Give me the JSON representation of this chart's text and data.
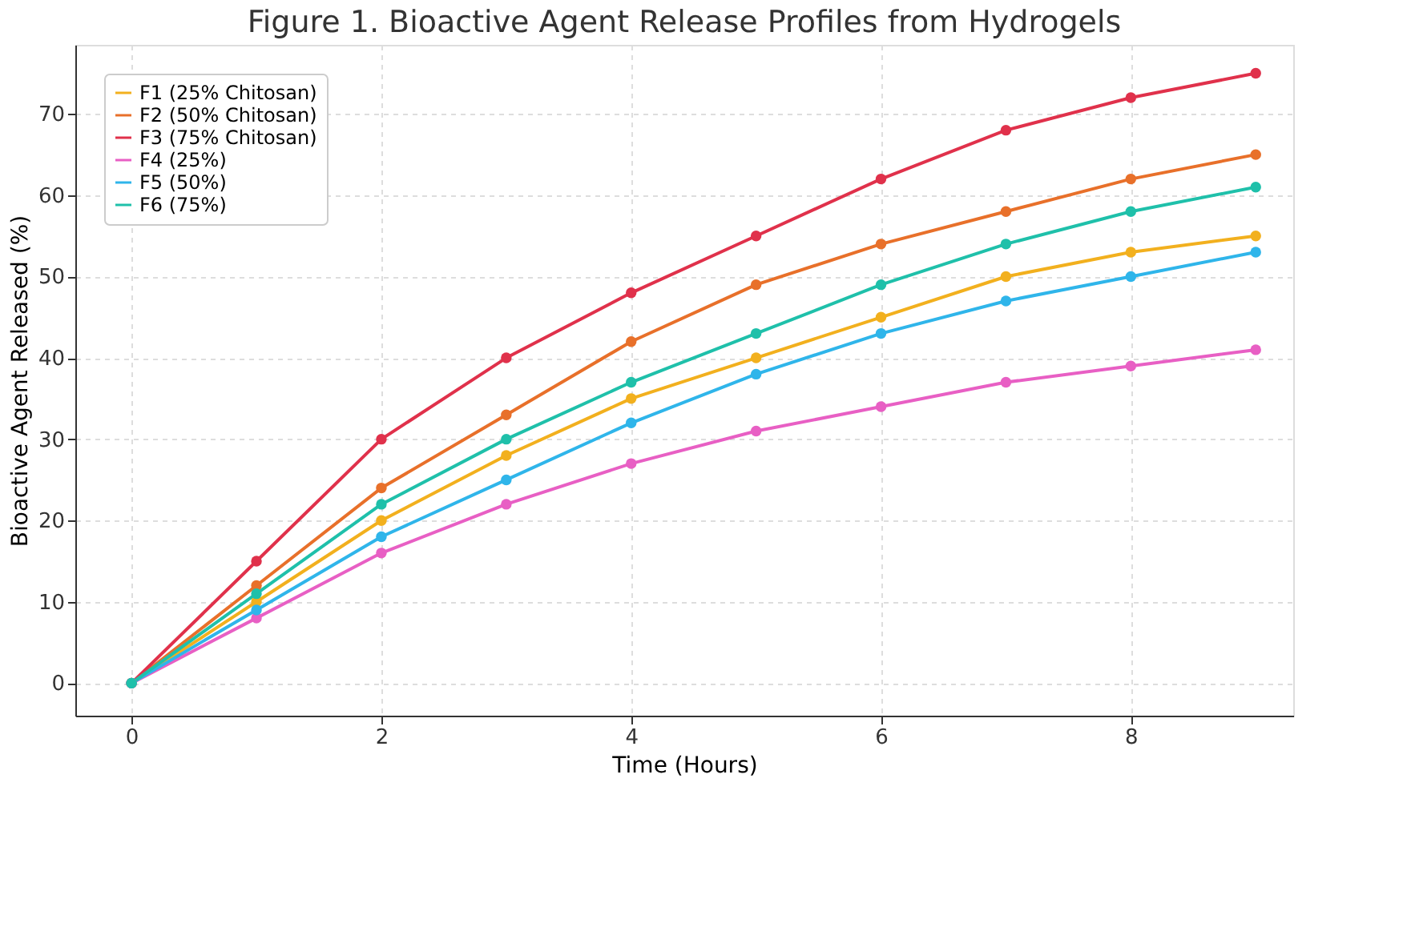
{
  "chart_data": {
    "type": "line",
    "title": "Figure 1. Bioactive Agent Release Profiles from Hydrogels",
    "xlabel": "Time (Hours)",
    "ylabel": "Bioactive Agent Released (%)",
    "x": [
      0,
      1,
      2,
      3,
      4,
      5,
      6,
      7,
      8,
      9
    ],
    "series": [
      {
        "name": "F1 (25% Chitosan)",
        "color": "#f2b01e",
        "values": [
          0,
          10,
          20,
          28,
          35,
          40,
          45,
          50,
          53,
          55
        ]
      },
      {
        "name": "F2 (50% Chitosan)",
        "color": "#e8702a",
        "values": [
          0,
          12,
          24,
          33,
          42,
          49,
          54,
          58,
          62,
          65
        ]
      },
      {
        "name": "F3 (75% Chitosan)",
        "color": "#e0314b",
        "values": [
          0,
          15,
          30,
          40,
          48,
          55,
          62,
          68,
          72,
          75
        ]
      },
      {
        "name": "F4 (25%)",
        "color": "#e85fc4",
        "values": [
          0,
          8,
          16,
          22,
          27,
          31,
          34,
          37,
          39,
          41
        ]
      },
      {
        "name": "F5 (50%)",
        "color": "#2fb5ea",
        "values": [
          0,
          9,
          18,
          25,
          32,
          38,
          43,
          47,
          50,
          53
        ]
      },
      {
        "name": "F6 (75%)",
        "color": "#1fc0aa",
        "values": [
          0,
          11,
          22,
          30,
          37,
          43,
          49,
          54,
          58,
          61
        ]
      }
    ],
    "xlim": [
      -0.45,
      9.3
    ],
    "xticks": [
      0,
      2,
      4,
      6,
      8
    ],
    "ylim": [
      -4,
      78.5
    ],
    "yticks": [
      0,
      10,
      20,
      30,
      40,
      50,
      60,
      70
    ],
    "grid": true,
    "legend": "top left",
    "marker": "circle",
    "line_style": "solid"
  }
}
